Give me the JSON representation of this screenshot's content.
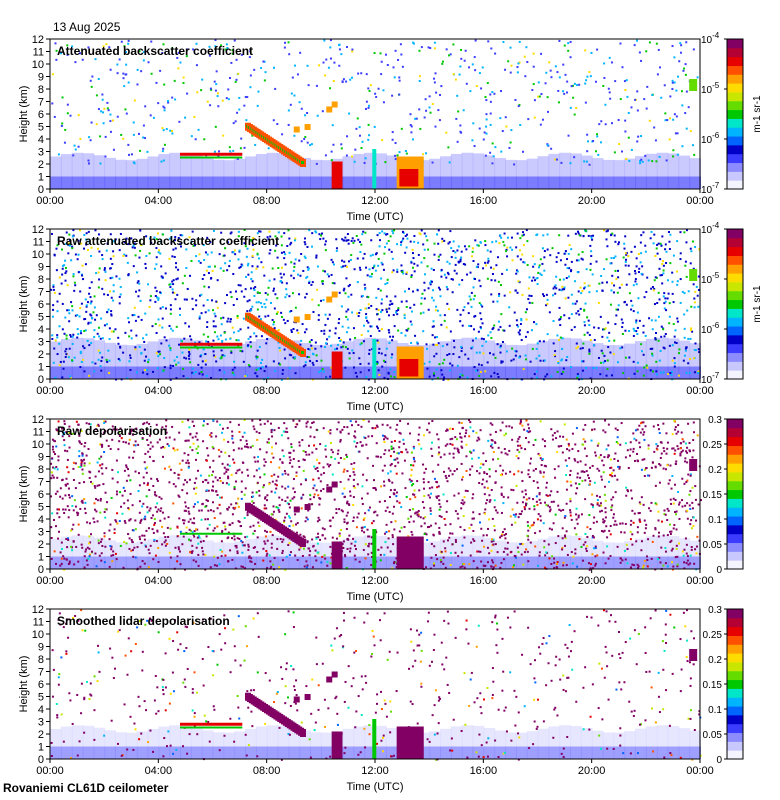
{
  "header": {
    "date": "13 Aug 2025"
  },
  "footer": {
    "site": "Rovaniemi CL61D ceilometer"
  },
  "chart_data": [
    {
      "type": "heatmap",
      "title": "Attenuated backscatter coefficient",
      "xlabel": "Time (UTC)",
      "ylabel": "Height (km)",
      "x_ticks": [
        "00:00",
        "04:00",
        "08:00",
        "12:00",
        "16:00",
        "20:00",
        "00:00"
      ],
      "y_ticks": [
        0,
        1,
        2,
        3,
        4,
        5,
        6,
        7,
        8,
        9,
        10,
        11,
        12
      ],
      "ylim": [
        0,
        12
      ],
      "colorbar": {
        "scale": "log",
        "ticks": [
          "10-7",
          "10-6",
          "10-5",
          "10-4"
        ],
        "unit": "m-1 sr-1"
      }
    },
    {
      "type": "heatmap",
      "title": "Raw attenuated backscatter coefficient",
      "xlabel": "Time (UTC)",
      "ylabel": "Height (km)",
      "x_ticks": [
        "00:00",
        "04:00",
        "08:00",
        "12:00",
        "16:00",
        "20:00",
        "00:00"
      ],
      "y_ticks": [
        0,
        1,
        2,
        3,
        4,
        5,
        6,
        7,
        8,
        9,
        10,
        11,
        12
      ],
      "ylim": [
        0,
        12
      ],
      "colorbar": {
        "scale": "log",
        "ticks": [
          "10-7",
          "10-6",
          "10-5",
          "10-4"
        ],
        "unit": "m-1 sr-1"
      }
    },
    {
      "type": "heatmap",
      "title": "Raw depolarisation",
      "xlabel": "Time (UTC)",
      "ylabel": "Height (km)",
      "x_ticks": [
        "00:00",
        "04:00",
        "08:00",
        "12:00",
        "16:00",
        "20:00",
        "00:00"
      ],
      "y_ticks": [
        0,
        1,
        2,
        3,
        4,
        5,
        6,
        7,
        8,
        9,
        10,
        11,
        12
      ],
      "ylim": [
        0,
        12
      ],
      "colorbar": {
        "scale": "linear",
        "ticks": [
          "0",
          "0.05",
          "0.1",
          "0.15",
          "0.2",
          "0.25",
          "0.3"
        ],
        "unit": ""
      }
    },
    {
      "type": "heatmap",
      "title": "Smoothed lidar depolarisation",
      "xlabel": "Time (UTC)",
      "ylabel": "Height (km)",
      "x_ticks": [
        "00:00",
        "04:00",
        "08:00",
        "12:00",
        "16:00",
        "20:00",
        "00:00"
      ],
      "y_ticks": [
        0,
        1,
        2,
        3,
        4,
        5,
        6,
        7,
        8,
        9,
        10,
        11,
        12
      ],
      "ylim": [
        0,
        12
      ],
      "colorbar": {
        "scale": "linear",
        "ticks": [
          "0",
          "0.05",
          "0.1",
          "0.15",
          "0.2",
          "0.25",
          "0.3"
        ],
        "unit": ""
      }
    }
  ]
}
